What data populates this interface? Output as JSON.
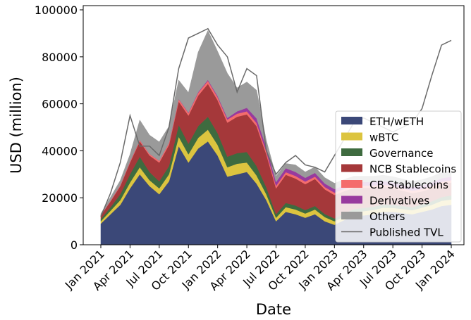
{
  "chart_data": {
    "type": "stacked_area",
    "xlabel": "Date",
    "ylabel": "USD (million)",
    "categories": [
      "Jan 2021",
      null,
      null,
      "Apr 2021",
      null,
      null,
      "Jul 2021",
      null,
      null,
      "Oct 2021",
      null,
      null,
      "Jan 2022",
      null,
      null,
      "Apr 2022",
      null,
      null,
      "Jul 2022",
      null,
      null,
      "Oct 2022",
      null,
      null,
      "Jan 2023",
      null,
      null,
      "Apr 2023",
      null,
      null,
      "Jul 2023",
      null,
      null,
      "Oct 2023",
      null,
      null,
      "Jan 2024"
    ],
    "ylim": [
      0,
      101800
    ],
    "yticks": [
      0,
      20000,
      40000,
      60000,
      80000,
      100000
    ],
    "legend": "lower right",
    "series": [
      {
        "name": "ETH/wETH",
        "color": "#3b4878",
        "values": [
          9000,
          13000,
          17000,
          24000,
          30000,
          25000,
          21500,
          27000,
          42000,
          35000,
          41000,
          44000,
          38000,
          29000,
          30000,
          31000,
          26000,
          19000,
          10000,
          14000,
          13000,
          11500,
          13000,
          10000,
          8500,
          10500,
          12000,
          12500,
          13000,
          14000,
          14000,
          13500,
          13000,
          14000,
          15000,
          16500,
          17000
        ]
      },
      {
        "name": "wBTC",
        "color": "#dcc43f",
        "values": [
          1000,
          1500,
          2000,
          2500,
          3000,
          2500,
          2500,
          3000,
          4000,
          3500,
          4500,
          5000,
          4500,
          4000,
          4500,
          4000,
          3500,
          2500,
          1500,
          2000,
          2000,
          1800,
          2000,
          1800,
          1500,
          1500,
          1800,
          1800,
          1800,
          1800,
          1700,
          1700,
          1700,
          1800,
          2000,
          2200,
          2300
        ]
      },
      {
        "name": "Governance",
        "color": "#3e6b3f",
        "values": [
          1000,
          1500,
          2500,
          3500,
          4500,
          3500,
          3000,
          3500,
          5000,
          4500,
          5000,
          5500,
          5000,
          4500,
          4500,
          4500,
          4000,
          3000,
          1500,
          1800,
          1700,
          1500,
          1500,
          1300,
          1200,
          1300,
          1400,
          1400,
          1400,
          1300,
          1300,
          1300,
          1300,
          1400,
          1500,
          1600,
          1700
        ]
      },
      {
        "name": "NCB Stablecoins",
        "color": "#a5383a",
        "values": [
          1500,
          2500,
          3500,
          5000,
          6500,
          7000,
          8000,
          9000,
          10000,
          12000,
          13000,
          14000,
          14000,
          14500,
          15500,
          16000,
          17000,
          14000,
          11000,
          12000,
          11500,
          11000,
          11500,
          10500,
          10000,
          9500,
          9000,
          8500,
          8000,
          7500,
          7000,
          6500,
          6000,
          5500,
          5500,
          5500,
          5500
        ]
      },
      {
        "name": "CB Stablecoins",
        "color": "#f46c6c",
        "values": [
          200,
          300,
          400,
          500,
          600,
          700,
          800,
          900,
          1000,
          1100,
          1200,
          1300,
          1300,
          1300,
          1300,
          1300,
          1300,
          1200,
          1100,
          1100,
          1100,
          1100,
          1000,
          1000,
          1000,
          1000,
          1000,
          1000,
          1000,
          1000,
          1000,
          1000,
          1000,
          1000,
          1000,
          1000,
          1000
        ]
      },
      {
        "name": "Derivatives",
        "color": "#983a9e",
        "values": [
          0,
          0,
          0,
          0,
          0,
          0,
          0,
          0,
          100,
          200,
          300,
          400,
          500,
          700,
          1000,
          1500,
          2000,
          1800,
          1600,
          1700,
          1700,
          1600,
          1600,
          1500,
          1500,
          1500,
          1500,
          1500,
          1500,
          1500,
          1500,
          1500,
          1500,
          1500,
          1500,
          1500,
          1500
        ]
      },
      {
        "name": "Others",
        "color": "#9a9a9a",
        "values": [
          500,
          1500,
          2000,
          3000,
          8500,
          8000,
          8000,
          7000,
          8000,
          8500,
          17000,
          21000,
          19000,
          19000,
          10000,
          11000,
          12000,
          3000,
          2500,
          2000,
          3000,
          2500,
          2500,
          2500,
          2500,
          2500,
          2500,
          2500,
          2500,
          2500,
          2500,
          2500,
          2500,
          2500,
          2500,
          2500,
          2500
        ]
      },
      {
        "name": "Published TVL",
        "color": "#6a6a6a",
        "type": "line",
        "values": [
          12000,
          22000,
          35000,
          55000,
          42000,
          42000,
          38000,
          50000,
          75000,
          88000,
          90000,
          92000,
          85000,
          80000,
          65000,
          75000,
          72000,
          40000,
          30000,
          35000,
          38000,
          34000,
          33000,
          31000,
          38000,
          45000,
          52000,
          54000,
          52000,
          50000,
          48000,
          50000,
          52000,
          58000,
          72000,
          85000,
          87000
        ]
      }
    ]
  }
}
